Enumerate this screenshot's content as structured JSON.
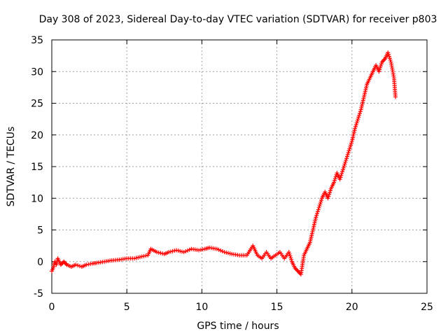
{
  "chart_data": {
    "type": "scatter",
    "title": "Day 308 of 2023, Sidereal Day-to-day VTEC variation (SDTVAR) for receiver p803",
    "xlabel": "GPS time / hours",
    "ylabel": "SDTVAR / TECUs",
    "xlim": [
      0,
      25
    ],
    "ylim": [
      -5,
      35
    ],
    "xticks": [
      0,
      5,
      10,
      15,
      20,
      25
    ],
    "yticks": [
      -5,
      0,
      5,
      10,
      15,
      20,
      25,
      30,
      35
    ],
    "grid": true,
    "marker": "plus",
    "color": "#ff0000",
    "series": [
      {
        "name": "SDTVAR",
        "x": [
          0.0,
          0.1,
          0.2,
          0.3,
          0.4,
          0.6,
          0.8,
          1.0,
          1.3,
          1.6,
          2.0,
          2.3,
          2.7,
          3.0,
          3.5,
          4.0,
          4.5,
          5.0,
          5.5,
          6.0,
          6.4,
          6.6,
          7.0,
          7.5,
          7.8,
          8.3,
          8.8,
          9.3,
          9.8,
          10.2,
          10.5,
          11.0,
          11.5,
          12.0,
          12.5,
          13.0,
          13.4,
          13.7,
          14.0,
          14.3,
          14.6,
          14.9,
          15.2,
          15.5,
          15.8,
          16.0,
          16.2,
          16.4,
          16.6,
          16.8,
          17.0,
          17.2,
          17.4,
          17.6,
          17.8,
          18.0,
          18.2,
          18.4,
          18.6,
          18.8,
          19.0,
          19.2,
          19.4,
          19.6,
          19.8,
          20.0,
          20.2,
          20.4,
          20.6,
          20.8,
          21.0,
          21.2,
          21.4,
          21.6,
          21.8,
          22.0,
          22.2,
          22.4,
          22.6,
          22.8,
          22.9
        ],
        "y": [
          -1.5,
          -1.0,
          0.0,
          -0.5,
          0.5,
          -0.5,
          0.0,
          -0.5,
          -0.8,
          -0.5,
          -0.8,
          -0.5,
          -0.3,
          -0.2,
          0.0,
          0.2,
          0.3,
          0.5,
          0.5,
          0.8,
          1.0,
          2.0,
          1.5,
          1.2,
          1.5,
          1.8,
          1.5,
          2.0,
          1.8,
          2.0,
          2.2,
          2.0,
          1.5,
          1.2,
          1.0,
          1.0,
          2.5,
          1.0,
          0.5,
          1.5,
          0.5,
          1.0,
          1.5,
          0.5,
          1.5,
          0.0,
          -1.0,
          -1.5,
          -2.0,
          1.0,
          2.0,
          3.0,
          5.0,
          7.0,
          8.5,
          10.0,
          11.0,
          10.0,
          11.5,
          12.5,
          14.0,
          13.0,
          14.5,
          16.0,
          17.5,
          19.0,
          21.0,
          22.5,
          24.0,
          26.0,
          28.0,
          29.0,
          30.0,
          31.0,
          30.0,
          31.5,
          32.0,
          33.0,
          31.5,
          29.0,
          26.0
        ]
      }
    ]
  }
}
